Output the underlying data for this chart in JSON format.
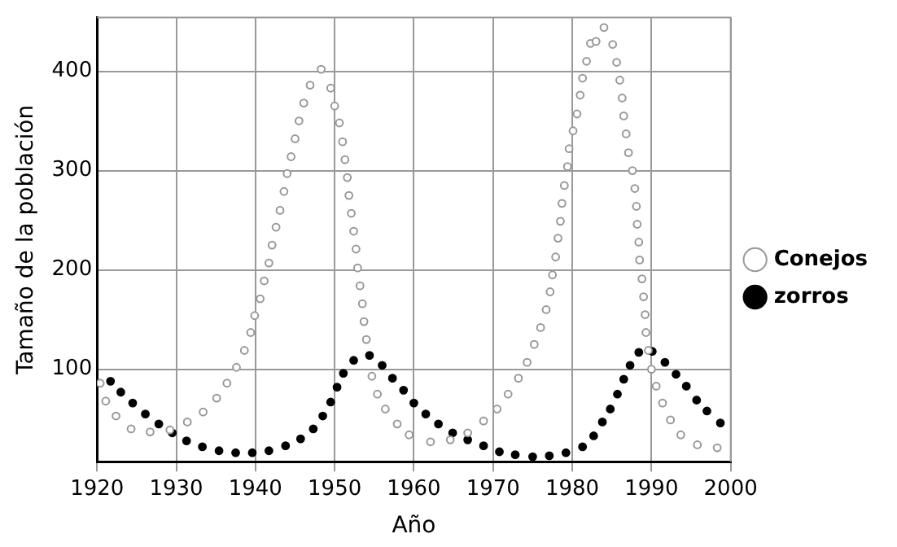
{
  "chart_data": {
    "type": "scatter",
    "xlabel": "Año",
    "ylabel": "Tamaño de la población",
    "xlim": [
      1920,
      2000
    ],
    "xticks": [
      1920,
      1930,
      1940,
      1950,
      1960,
      1970,
      1980,
      1990,
      2000
    ],
    "ylim": [
      7,
      454
    ],
    "yticks": [
      100,
      200,
      300,
      400
    ],
    "grid": true,
    "legend": "right",
    "marker": "circle",
    "series": [
      {
        "name": "Conejos",
        "color": "#999999",
        "x": [
          1920.4,
          1921.1,
          1922.4,
          1924.3,
          1926.7,
          1929.2,
          1931.4,
          1933.4,
          1935.1,
          1936.4,
          1937.6,
          1938.6,
          1939.4,
          1939.9,
          1940.6,
          1941.1,
          1941.7,
          1942.1,
          1942.6,
          1943.1,
          1943.6,
          1944,
          1944.5,
          1945,
          1945.5,
          1946.1,
          1946.9,
          1948.3,
          1949.5,
          1950,
          1950.6,
          1951,
          1951.3,
          1951.6,
          1951.8,
          1952.1,
          1952.4,
          1952.7,
          1952.9,
          1953.2,
          1953.5,
          1953.7,
          1954,
          1954.7,
          1955.4,
          1956.4,
          1957.9,
          1959.4,
          1962.1,
          1964.6,
          1966.8,
          1968.8,
          1970.5,
          1971.9,
          1973.2,
          1974.3,
          1975.2,
          1976,
          1976.7,
          1977.2,
          1977.5,
          1977.9,
          1978.2,
          1978.5,
          1978.7,
          1979,
          1979.4,
          1979.6,
          1980.1,
          1980.6,
          1981,
          1981.3,
          1981.8,
          1982.3,
          1983,
          1984,
          1985.1,
          1985.6,
          1986,
          1986.3,
          1986.5,
          1986.8,
          1987.1,
          1987.6,
          1987.9,
          1988.1,
          1988.2,
          1988.4,
          1988.5,
          1988.8,
          1989,
          1989.2,
          1989.3,
          1989.6,
          1990,
          1990.6,
          1991.4,
          1992.4,
          1993.7,
          1995.8,
          1998.3
        ],
        "values": [
          86,
          68,
          53,
          40,
          37,
          39,
          47,
          57,
          71,
          86,
          102,
          119,
          137,
          154,
          171,
          189,
          207,
          225,
          243,
          260,
          279,
          297,
          314,
          332,
          350,
          368,
          386,
          402,
          383,
          365,
          348,
          329,
          311,
          293,
          275,
          257,
          239,
          221,
          202,
          184,
          166,
          148,
          130,
          93,
          75,
          60,
          45,
          34,
          27,
          29,
          36,
          48,
          60,
          75,
          91,
          107,
          125,
          142,
          160,
          178,
          195,
          213,
          232,
          249,
          267,
          285,
          304,
          322,
          340,
          357,
          376,
          393,
          410,
          428,
          430,
          444,
          427,
          409,
          391,
          373,
          355,
          337,
          318,
          300,
          282,
          264,
          246,
          228,
          210,
          191,
          173,
          155,
          137,
          119,
          100,
          83,
          66,
          49,
          34,
          24,
          21
        ]
      },
      {
        "name": "zorros",
        "color": "#000000",
        "x": [
          1921.7,
          1923,
          1924.5,
          1926.1,
          1927.8,
          1929.5,
          1931.3,
          1933.3,
          1935.4,
          1937.5,
          1939.6,
          1941.7,
          1943.8,
          1945.7,
          1947.3,
          1948.5,
          1949.5,
          1950.3,
          1951.1,
          1952.4,
          1954.4,
          1956,
          1957.3,
          1958.7,
          1960,
          1961.5,
          1963.1,
          1964.9,
          1966.8,
          1968.8,
          1970.8,
          1972.8,
          1975,
          1977.1,
          1979.2,
          1981.3,
          1982.7,
          1983.8,
          1984.8,
          1985.7,
          1986.5,
          1987.3,
          1988.4,
          1990.1,
          1991.7,
          1993.1,
          1994.4,
          1995.7,
          1997,
          1998.7
        ],
        "values": [
          88,
          77,
          66,
          55,
          45,
          36,
          28,
          22,
          18,
          16,
          16,
          18,
          23,
          30,
          40,
          53,
          67,
          82,
          96,
          109,
          114,
          104,
          91,
          79,
          66,
          55,
          45,
          36,
          29,
          23,
          17,
          14,
          12,
          13,
          16,
          22,
          33,
          47,
          60,
          75,
          90,
          104,
          117,
          118,
          107,
          95,
          83,
          69,
          58,
          46
        ]
      }
    ]
  }
}
